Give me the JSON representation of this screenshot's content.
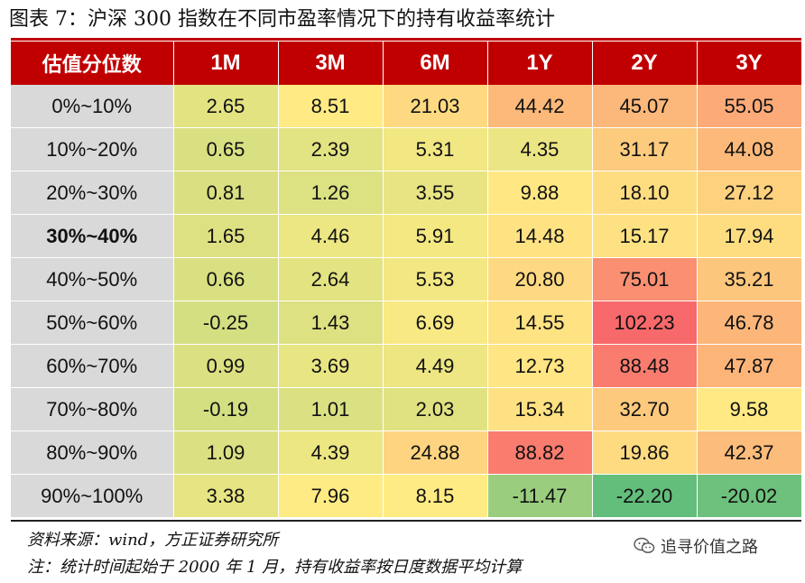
{
  "header": {
    "title": "图表 7：沪深 300 指数在不同市盈率情况下的持有收益率统计"
  },
  "chart_data": {
    "type": "heatmap",
    "title": "图表 7：沪深 300 指数在不同市盈率情况下的持有收益率统计",
    "row_header": "估值分位数",
    "columns": [
      "1M",
      "3M",
      "6M",
      "1Y",
      "2Y",
      "3Y"
    ],
    "rows": [
      "0%~10%",
      "10%~20%",
      "20%~30%",
      "30%~40%",
      "40%~50%",
      "50%~60%",
      "60%~70%",
      "70%~80%",
      "80%~90%",
      "90%~100%"
    ],
    "bold_row": "30%~40%",
    "values": [
      [
        2.65,
        8.51,
        21.03,
        44.42,
        45.07,
        55.05
      ],
      [
        0.65,
        2.39,
        5.31,
        4.35,
        31.17,
        44.08
      ],
      [
        0.81,
        1.26,
        3.55,
        9.88,
        18.1,
        27.12
      ],
      [
        1.65,
        4.46,
        5.91,
        14.48,
        15.17,
        17.94
      ],
      [
        0.66,
        2.64,
        5.53,
        20.8,
        75.01,
        35.21
      ],
      [
        -0.25,
        1.43,
        6.69,
        14.55,
        102.23,
        46.78
      ],
      [
        0.99,
        3.69,
        4.49,
        12.73,
        88.48,
        47.87
      ],
      [
        -0.19,
        1.01,
        2.03,
        15.34,
        32.7,
        9.58
      ],
      [
        1.09,
        4.39,
        24.88,
        88.82,
        19.86,
        42.37
      ],
      [
        3.38,
        7.96,
        8.15,
        -11.47,
        -22.2,
        -20.02
      ]
    ],
    "color_scale": {
      "low": "#63be7b",
      "mid": "#ffeb84",
      "high": "#f8696b"
    }
  },
  "footer": {
    "source": "资料来源：wind，方正证券研究所",
    "note": "注：统计时间起始于 2000 年 1 月，持有收益率按日度数据平均计算",
    "watermark_text": "追寻价值之路",
    "watermark_icon": "wechat-icon"
  }
}
